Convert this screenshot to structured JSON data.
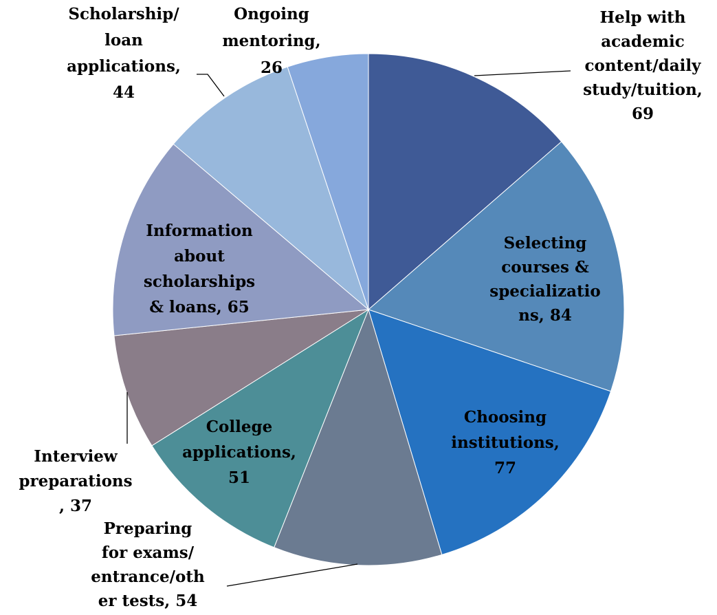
{
  "chart_data": {
    "type": "pie",
    "labels": [
      [
        "Help with",
        "academic",
        "content/daily",
        "study/tuition,",
        "69"
      ],
      [
        "Selecting",
        "courses &",
        "specializatio",
        "ns, 84"
      ],
      [
        "Choosing",
        "institutions,",
        "77"
      ],
      [
        "Preparing",
        "for exams/",
        "entrance/oth",
        "er tests, 54"
      ],
      [
        "College",
        "applications,",
        "51"
      ],
      [
        "Interview",
        "preparations",
        ", 37"
      ],
      [
        "Information",
        "about",
        "scholarships",
        "& loans, 65"
      ],
      [
        "Scholarship/",
        "loan",
        "applications,",
        "44"
      ],
      [
        "Ongoing",
        "mentoring,",
        "26"
      ]
    ],
    "values": [
      69,
      84,
      77,
      54,
      51,
      37,
      65,
      44,
      26
    ],
    "colors": [
      "#3f5a96",
      "#5589b9",
      "#2572c1",
      "#6b7b91",
      "#4d8e97",
      "#8a7d89",
      "#8f9bc2",
      "#98b8dc",
      "#86a8dc"
    ]
  }
}
